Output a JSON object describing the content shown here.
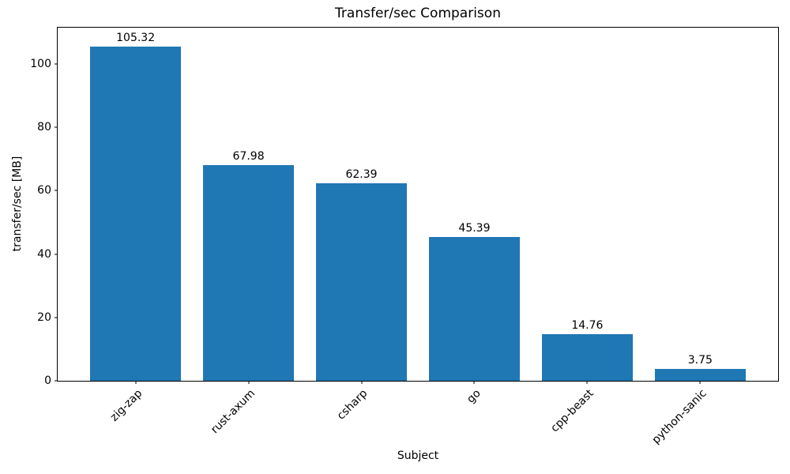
{
  "chart_data": {
    "type": "bar",
    "title": "Transfer/sec Comparison",
    "xlabel": "Subject",
    "ylabel": "transfer/sec [MB]",
    "categories": [
      "zig-zap",
      "rust-axum",
      "csharp",
      "go",
      "cpp-beast",
      "python-sanic"
    ],
    "values": [
      105.32,
      67.98,
      62.39,
      45.39,
      14.76,
      3.75
    ],
    "value_labels": [
      "105.32",
      "67.98",
      "62.39",
      "45.39",
      "14.76",
      "3.75"
    ],
    "yticks": [
      0,
      20,
      40,
      60,
      80,
      100
    ],
    "ylim": [
      0,
      111.4
    ],
    "xlim": [
      -0.69,
      5.69
    ],
    "bar_width": 0.8,
    "bar_color": "#1f77b4",
    "spine_color": "#000000",
    "grid": false,
    "legend": null
  }
}
